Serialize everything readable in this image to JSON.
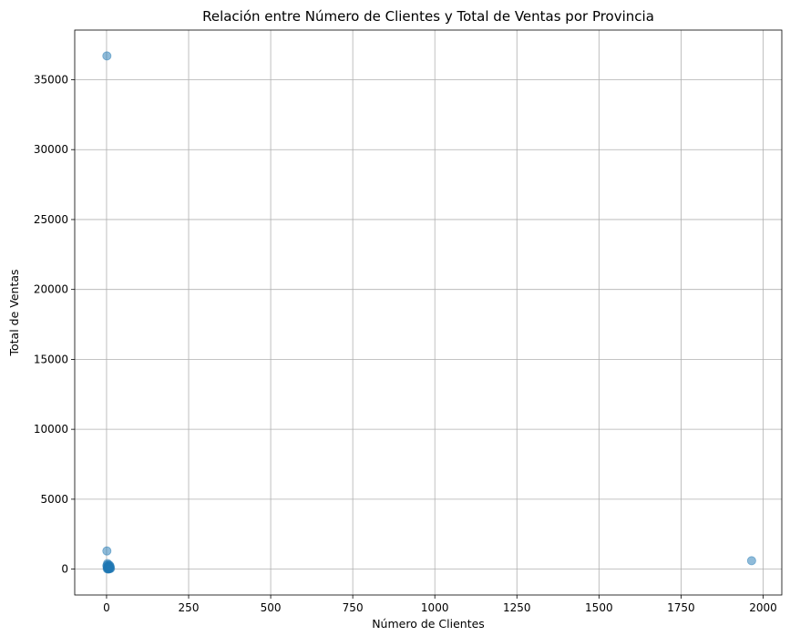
{
  "chart_data": {
    "type": "scatter",
    "title": "Relación entre Número de Clientes y Total de Ventas por Provincia",
    "xlabel": "Número de Clientes",
    "ylabel": "Total de Ventas",
    "xlim": [
      -97,
      2057
    ],
    "ylim": [
      -1850,
      38550
    ],
    "xticks": [
      0,
      250,
      500,
      750,
      1000,
      1250,
      1500,
      1750,
      2000
    ],
    "yticks": [
      0,
      5000,
      10000,
      15000,
      20000,
      25000,
      30000,
      35000
    ],
    "grid": true,
    "point_color": "#1f77b4",
    "point_alpha": 0.5,
    "points": [
      {
        "x": 1,
        "y": 36700
      },
      {
        "x": 1,
        "y": 1300
      },
      {
        "x": 1965,
        "y": 600
      },
      {
        "x": 1,
        "y": 250
      },
      {
        "x": 2,
        "y": 150
      },
      {
        "x": 3,
        "y": 80
      },
      {
        "x": 4,
        "y": 320
      },
      {
        "x": 5,
        "y": 40
      },
      {
        "x": 6,
        "y": 200
      },
      {
        "x": 7,
        "y": 120
      },
      {
        "x": 8,
        "y": 60
      },
      {
        "x": 9,
        "y": 280
      },
      {
        "x": 10,
        "y": 30
      },
      {
        "x": 11,
        "y": 180
      },
      {
        "x": 2,
        "y": 20
      },
      {
        "x": 3,
        "y": 400
      },
      {
        "x": 5,
        "y": 10
      },
      {
        "x": 6,
        "y": 90
      },
      {
        "x": 8,
        "y": 220
      },
      {
        "x": 12,
        "y": 50
      },
      {
        "x": 4,
        "y": 140
      },
      {
        "x": 7,
        "y": 15
      },
      {
        "x": 9,
        "y": 110
      }
    ]
  }
}
